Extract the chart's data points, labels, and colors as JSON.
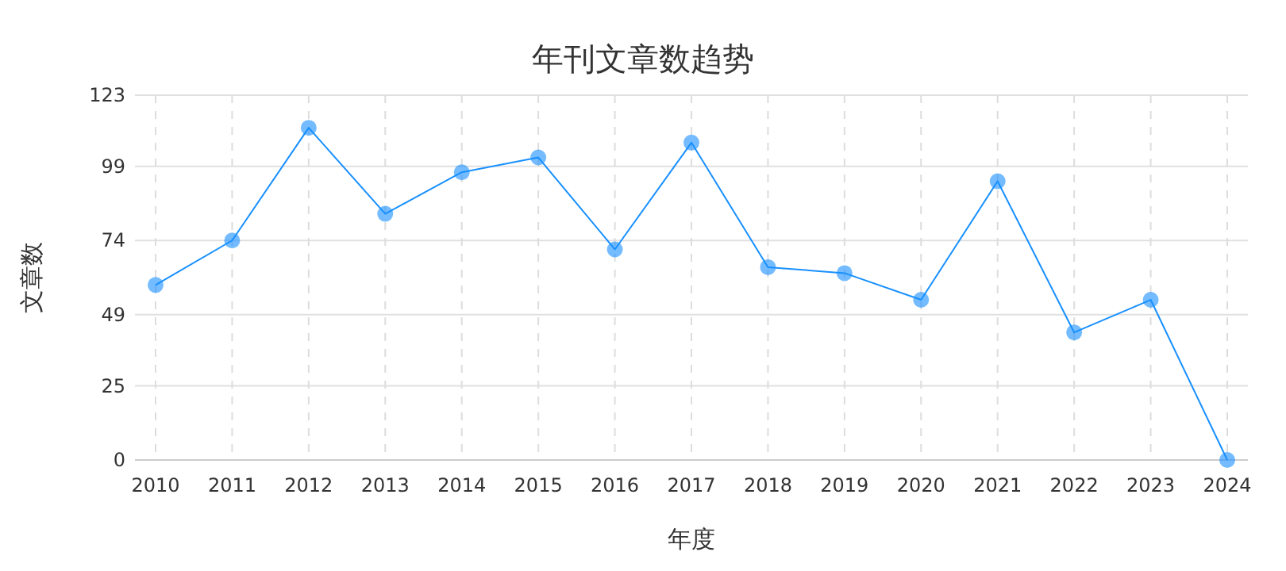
{
  "chart_data": {
    "type": "line",
    "title": "年刊文章数趋势",
    "xlabel": "年度",
    "ylabel": "文章数",
    "categories": [
      "2010",
      "2011",
      "2012",
      "2013",
      "2014",
      "2015",
      "2016",
      "2017",
      "2018",
      "2019",
      "2020",
      "2021",
      "2022",
      "2023",
      "2024"
    ],
    "series": [
      {
        "color": "#1890ff",
        "values": [
          59,
          74,
          112,
          83,
          97,
          102,
          71,
          107,
          65,
          63,
          54,
          94,
          43,
          54,
          0
        ]
      }
    ],
    "ylim": [
      0,
      123
    ],
    "yticks": [
      0,
      25,
      49,
      74,
      99,
      123
    ],
    "grid": true,
    "marker": "circle",
    "line_style": "solid"
  }
}
